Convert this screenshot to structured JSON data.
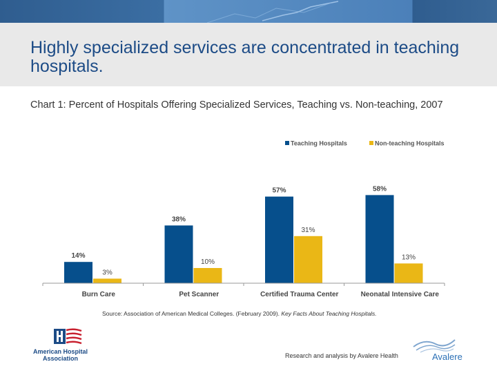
{
  "slide": {
    "title": "Highly specialized services are concentrated in teaching hospitals.",
    "subtitle": "Chart 1: Percent of Hospitals Offering Specialized Services, Teaching vs. Non-teaching, 2007",
    "source_prefix": "Source: Association of American Medical Colleges. (February 2009).",
    "source_title": "Key Facts About Teaching Hospitals.",
    "credit": "Research and analysis by Avalere Health",
    "aha_logo_text": "American Hospital Association",
    "avalere_logo_text": "Avalere"
  },
  "colors": {
    "teaching": "#064f8c",
    "nonteaching": "#eab716",
    "title_text": "#1c4b86",
    "header_band": "#e9e9e9"
  },
  "chart_data": {
    "type": "bar",
    "categories": [
      "Burn Care",
      "Pet Scanner",
      "Certified Trauma Center",
      "Neonatal Intensive Care"
    ],
    "series": [
      {
        "name": "Teaching Hospitals",
        "values": [
          14,
          38,
          57,
          58
        ],
        "labels": [
          "14%",
          "38%",
          "57%",
          "58%"
        ]
      },
      {
        "name": "Non-teaching Hospitals",
        "values": [
          3,
          10,
          31,
          13
        ],
        "labels": [
          "3%",
          "10%",
          "31%",
          "13%"
        ]
      }
    ],
    "title": "",
    "xlabel": "",
    "ylabel": "",
    "ylim": [
      0,
      60
    ],
    "grid": false,
    "legend": "top-right"
  }
}
